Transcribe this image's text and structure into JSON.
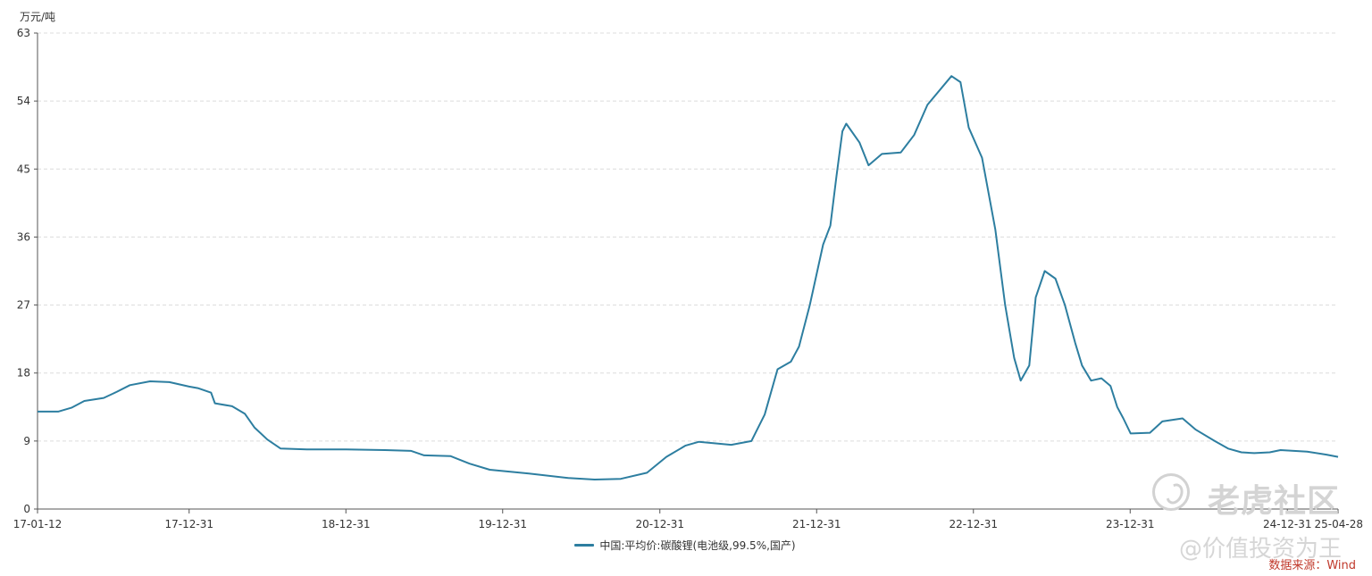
{
  "chart_data": {
    "type": "line",
    "unit_label": "万元/吨",
    "ylim": [
      0,
      63
    ],
    "y_ticks": [
      "0",
      "9",
      "18",
      "27",
      "36",
      "45",
      "54",
      "63"
    ],
    "x_range": [
      "2017-01-12",
      "2025-04-28"
    ],
    "x_ticks": [
      {
        "label": "17-01-12",
        "date": "2017-01-12"
      },
      {
        "label": "17-12-31",
        "date": "2017-12-31"
      },
      {
        "label": "18-12-31",
        "date": "2018-12-31"
      },
      {
        "label": "19-12-31",
        "date": "2019-12-31"
      },
      {
        "label": "20-12-31",
        "date": "2020-12-31"
      },
      {
        "label": "21-12-31",
        "date": "2021-12-31"
      },
      {
        "label": "22-12-31",
        "date": "2022-12-31"
      },
      {
        "label": "23-12-31",
        "date": "2023-12-31"
      },
      {
        "label": "24-12-31",
        "date": "2024-12-31"
      },
      {
        "label": "25-04-28",
        "date": "2025-04-28"
      }
    ],
    "grid": "horizontal-dashed",
    "legend_position": "bottom",
    "series": [
      {
        "name": "中国:平均价:碳酸锂(电池级,99.5%,国产)",
        "color": "#2d7ea0",
        "points": [
          [
            "2017-01-12",
            12.9
          ],
          [
            "2017-03-01",
            12.9
          ],
          [
            "2017-04-01",
            13.4
          ],
          [
            "2017-05-01",
            14.3
          ],
          [
            "2017-06-15",
            14.7
          ],
          [
            "2017-07-15",
            15.5
          ],
          [
            "2017-08-15",
            16.4
          ],
          [
            "2017-10-01",
            16.9
          ],
          [
            "2017-11-15",
            16.8
          ],
          [
            "2017-12-31",
            16.2
          ],
          [
            "2018-01-20",
            16.0
          ],
          [
            "2018-02-20",
            15.4
          ],
          [
            "2018-03-01",
            14.0
          ],
          [
            "2018-04-10",
            13.6
          ],
          [
            "2018-05-10",
            12.6
          ],
          [
            "2018-06-01",
            10.8
          ],
          [
            "2018-07-01",
            9.2
          ],
          [
            "2018-08-01",
            8.0
          ],
          [
            "2018-10-01",
            7.9
          ],
          [
            "2019-01-01",
            7.9
          ],
          [
            "2019-04-01",
            7.8
          ],
          [
            "2019-06-01",
            7.7
          ],
          [
            "2019-07-01",
            7.1
          ],
          [
            "2019-09-01",
            7.0
          ],
          [
            "2019-10-15",
            6.0
          ],
          [
            "2019-12-01",
            5.2
          ],
          [
            "2020-03-01",
            4.7
          ],
          [
            "2020-06-01",
            4.1
          ],
          [
            "2020-08-01",
            3.9
          ],
          [
            "2020-10-01",
            4.0
          ],
          [
            "2020-12-01",
            4.8
          ],
          [
            "2021-01-15",
            6.9
          ],
          [
            "2021-03-01",
            8.4
          ],
          [
            "2021-04-01",
            8.9
          ],
          [
            "2021-06-15",
            8.5
          ],
          [
            "2021-08-01",
            9.0
          ],
          [
            "2021-09-01",
            12.5
          ],
          [
            "2021-10-01",
            18.5
          ],
          [
            "2021-11-01",
            19.5
          ],
          [
            "2021-11-20",
            21.5
          ],
          [
            "2021-12-15",
            27.0
          ],
          [
            "2022-01-15",
            35.0
          ],
          [
            "2022-02-01",
            37.5
          ],
          [
            "2022-02-15",
            44.0
          ],
          [
            "2022-03-01",
            50.0
          ],
          [
            "2022-03-10",
            51.0
          ],
          [
            "2022-04-10",
            48.5
          ],
          [
            "2022-05-01",
            45.5
          ],
          [
            "2022-06-01",
            47.0
          ],
          [
            "2022-07-15",
            47.2
          ],
          [
            "2022-08-15",
            49.5
          ],
          [
            "2022-09-15",
            53.5
          ],
          [
            "2022-11-10",
            57.3
          ],
          [
            "2022-12-01",
            56.5
          ],
          [
            "2022-12-20",
            50.5
          ],
          [
            "2023-01-20",
            46.5
          ],
          [
            "2023-02-20",
            37.0
          ],
          [
            "2023-03-15",
            27.0
          ],
          [
            "2023-04-05",
            20.0
          ],
          [
            "2023-04-20",
            17.0
          ],
          [
            "2023-05-10",
            19.0
          ],
          [
            "2023-05-25",
            28.0
          ],
          [
            "2023-06-15",
            31.5
          ],
          [
            "2023-07-10",
            30.5
          ],
          [
            "2023-08-01",
            27.0
          ],
          [
            "2023-08-25",
            22.0
          ],
          [
            "2023-09-10",
            19.0
          ],
          [
            "2023-10-01",
            17.0
          ],
          [
            "2023-10-25",
            17.3
          ],
          [
            "2023-11-15",
            16.3
          ],
          [
            "2023-12-01",
            13.5
          ],
          [
            "2023-12-15",
            12.0
          ],
          [
            "2024-01-01",
            10.0
          ],
          [
            "2024-02-15",
            10.1
          ],
          [
            "2024-03-15",
            11.6
          ],
          [
            "2024-05-01",
            12.0
          ],
          [
            "2024-06-01",
            10.5
          ],
          [
            "2024-07-15",
            9.0
          ],
          [
            "2024-08-15",
            8.0
          ],
          [
            "2024-09-15",
            7.5
          ],
          [
            "2024-10-15",
            7.4
          ],
          [
            "2024-11-20",
            7.5
          ],
          [
            "2024-12-15",
            7.8
          ],
          [
            "2025-02-15",
            7.6
          ],
          [
            "2025-04-01",
            7.2
          ],
          [
            "2025-04-28",
            6.9
          ]
        ]
      }
    ],
    "source": "数据来源：Wind"
  },
  "watermark": {
    "brand": "老虎社区",
    "handle": "@价值投资为王"
  }
}
